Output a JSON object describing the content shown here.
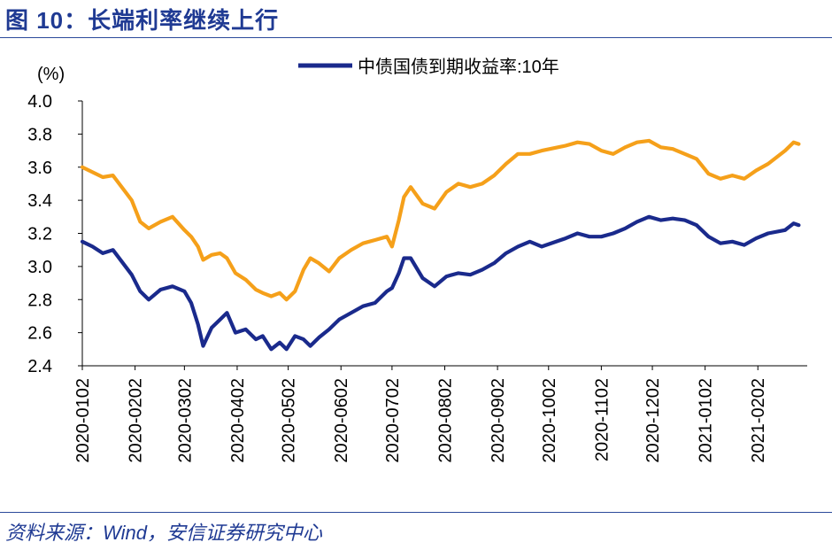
{
  "header": {
    "title": "图 10：长端利率继续上行"
  },
  "footer": {
    "source": "资料来源：Wind，安信证券研究中心"
  },
  "colors": {
    "brand": "#1f3a93",
    "series_primary": "#1a2a8c",
    "series_secondary": "#f5a01a"
  },
  "chart_data": {
    "type": "line",
    "title": "",
    "ylabel": "(%)",
    "xlabel": "",
    "ylim": [
      2.4,
      4.0
    ],
    "yticks": [
      "4.0",
      "3.8",
      "3.6",
      "3.4",
      "3.2",
      "3.0",
      "2.8",
      "2.6",
      "2.4"
    ],
    "categories": [
      "2020-0102",
      "2020-0202",
      "2020-0302",
      "2020-0402",
      "2020-0502",
      "2020-0602",
      "2020-0702",
      "2020-0802",
      "2020-0902",
      "2020-1002",
      "2020-1102",
      "2020-1202",
      "2021-0102",
      "2021-0202"
    ],
    "legend_position": "top-right",
    "grid": false,
    "series": [
      {
        "name": "中债国债到期收益率:10年",
        "color": "#1a2a8c",
        "x": [
          "2020-01-02",
          "2020-01-08",
          "2020-01-14",
          "2020-01-20",
          "2020-01-31",
          "2020-02-05",
          "2020-02-10",
          "2020-02-17",
          "2020-02-24",
          "2020-03-02",
          "2020-03-06",
          "2020-03-10",
          "2020-03-13",
          "2020-03-18",
          "2020-03-23",
          "2020-03-27",
          "2020-04-01",
          "2020-04-07",
          "2020-04-13",
          "2020-04-17",
          "2020-04-22",
          "2020-04-27",
          "2020-05-01",
          "2020-05-06",
          "2020-05-11",
          "2020-05-15",
          "2020-05-20",
          "2020-05-26",
          "2020-06-01",
          "2020-06-08",
          "2020-06-15",
          "2020-06-22",
          "2020-06-29",
          "2020-07-02",
          "2020-07-06",
          "2020-07-09",
          "2020-07-13",
          "2020-07-20",
          "2020-07-27",
          "2020-08-03",
          "2020-08-10",
          "2020-08-17",
          "2020-08-24",
          "2020-08-31",
          "2020-09-07",
          "2020-09-14",
          "2020-09-21",
          "2020-09-28",
          "2020-10-12",
          "2020-10-19",
          "2020-10-26",
          "2020-11-02",
          "2020-11-09",
          "2020-11-16",
          "2020-11-23",
          "2020-11-30",
          "2020-12-07",
          "2020-12-14",
          "2020-12-21",
          "2020-12-28",
          "2021-01-04",
          "2021-01-11",
          "2021-01-18",
          "2021-01-25",
          "2021-02-01",
          "2021-02-08",
          "2021-02-18",
          "2021-02-23",
          "2021-02-26"
        ],
        "y": [
          3.15,
          3.12,
          3.08,
          3.1,
          2.95,
          2.85,
          2.8,
          2.86,
          2.88,
          2.85,
          2.78,
          2.65,
          2.52,
          2.63,
          2.68,
          2.72,
          2.6,
          2.62,
          2.56,
          2.58,
          2.5,
          2.54,
          2.5,
          2.58,
          2.56,
          2.52,
          2.57,
          2.62,
          2.68,
          2.72,
          2.76,
          2.78,
          2.85,
          2.87,
          2.96,
          3.05,
          3.05,
          2.93,
          2.88,
          2.94,
          2.96,
          2.95,
          2.98,
          3.02,
          3.08,
          3.12,
          3.15,
          3.12,
          3.17,
          3.2,
          3.18,
          3.18,
          3.2,
          3.23,
          3.27,
          3.3,
          3.28,
          3.29,
          3.28,
          3.25,
          3.18,
          3.14,
          3.15,
          3.13,
          3.17,
          3.2,
          3.22,
          3.26,
          3.25
        ]
      },
      {
        "name": "",
        "color": "#f5a01a",
        "x": [
          "2020-01-02",
          "2020-01-08",
          "2020-01-14",
          "2020-01-20",
          "2020-01-31",
          "2020-02-05",
          "2020-02-10",
          "2020-02-17",
          "2020-02-24",
          "2020-03-02",
          "2020-03-06",
          "2020-03-10",
          "2020-03-13",
          "2020-03-18",
          "2020-03-23",
          "2020-03-27",
          "2020-04-01",
          "2020-04-07",
          "2020-04-13",
          "2020-04-17",
          "2020-04-22",
          "2020-04-27",
          "2020-05-01",
          "2020-05-06",
          "2020-05-11",
          "2020-05-15",
          "2020-05-20",
          "2020-05-26",
          "2020-06-01",
          "2020-06-08",
          "2020-06-15",
          "2020-06-22",
          "2020-06-29",
          "2020-07-02",
          "2020-07-06",
          "2020-07-09",
          "2020-07-13",
          "2020-07-20",
          "2020-07-27",
          "2020-08-03",
          "2020-08-10",
          "2020-08-17",
          "2020-08-24",
          "2020-08-31",
          "2020-09-07",
          "2020-09-14",
          "2020-09-21",
          "2020-09-28",
          "2020-10-12",
          "2020-10-19",
          "2020-10-26",
          "2020-11-02",
          "2020-11-09",
          "2020-11-16",
          "2020-11-23",
          "2020-11-30",
          "2020-12-07",
          "2020-12-14",
          "2020-12-21",
          "2020-12-28",
          "2021-01-04",
          "2021-01-11",
          "2021-01-18",
          "2021-01-25",
          "2021-02-01",
          "2021-02-08",
          "2021-02-18",
          "2021-02-23",
          "2021-02-26"
        ],
        "y": [
          3.6,
          3.57,
          3.54,
          3.55,
          3.4,
          3.27,
          3.23,
          3.27,
          3.3,
          3.22,
          3.18,
          3.12,
          3.04,
          3.07,
          3.08,
          3.05,
          2.96,
          2.92,
          2.86,
          2.84,
          2.82,
          2.84,
          2.8,
          2.85,
          2.98,
          3.05,
          3.02,
          2.97,
          3.05,
          3.1,
          3.14,
          3.16,
          3.18,
          3.12,
          3.28,
          3.42,
          3.48,
          3.38,
          3.35,
          3.45,
          3.5,
          3.48,
          3.5,
          3.55,
          3.62,
          3.68,
          3.68,
          3.7,
          3.73,
          3.75,
          3.74,
          3.7,
          3.68,
          3.72,
          3.75,
          3.76,
          3.72,
          3.71,
          3.68,
          3.65,
          3.56,
          3.53,
          3.55,
          3.53,
          3.58,
          3.62,
          3.7,
          3.75,
          3.74
        ]
      }
    ]
  }
}
